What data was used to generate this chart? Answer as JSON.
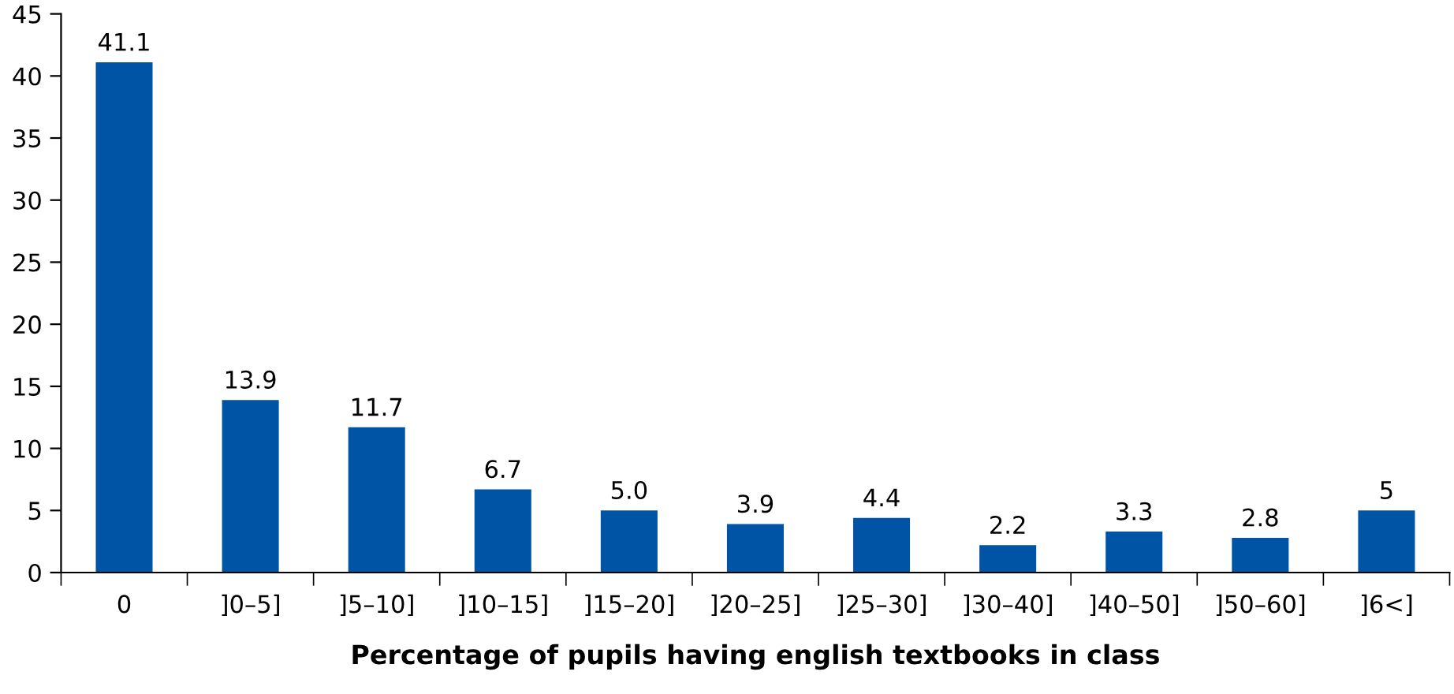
{
  "chart_data": {
    "type": "bar",
    "xlabel": "Percentage of pupils having english textbooks in class",
    "categories": [
      "0",
      "]0–5]",
      "]5–10]",
      "]10–15]",
      "]15–20]",
      "]20–25]",
      "]25–30]",
      "]30–40]",
      "]40–50]",
      "]50–60]",
      "]6<]"
    ],
    "values": [
      41.1,
      13.9,
      11.7,
      6.7,
      5.0,
      3.9,
      4.4,
      2.2,
      3.3,
      2.8,
      5
    ],
    "value_labels": [
      "41.1",
      "13.9",
      "11.7",
      "6.7",
      "5.0",
      "3.9",
      "4.4",
      "2.2",
      "3.3",
      "2.8",
      "5"
    ],
    "color": "#0054a6",
    "ylim": [
      0,
      45
    ],
    "yticks": [
      0,
      5,
      10,
      15,
      20,
      25,
      30,
      35,
      40,
      45
    ],
    "grid": false
  }
}
